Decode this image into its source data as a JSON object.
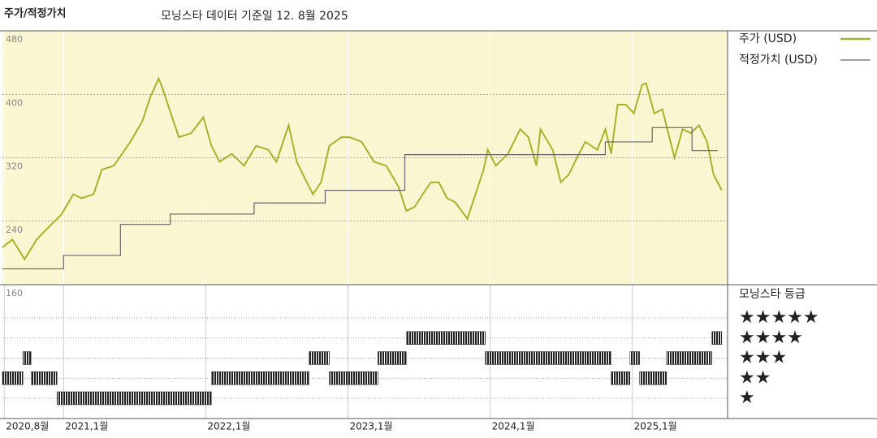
{
  "chart_data": {
    "type": "line",
    "title": "주가/적정가치",
    "subtitle": "모닝스타 데이터 기준일 12. 8월 2025",
    "xlim": [
      2020.57,
      2025.67
    ],
    "xticks": [
      {
        "value": 2020.583,
        "label": "2020,8월"
      },
      {
        "value": 2021.0,
        "label": "2021,1월"
      },
      {
        "value": 2022.0,
        "label": "2022,1월"
      },
      {
        "value": 2023.0,
        "label": "2023,1월"
      },
      {
        "value": 2024.0,
        "label": "2024,1월"
      },
      {
        "value": 2025.0,
        "label": "2025,1월"
      }
    ],
    "ylim": [
      160,
      480
    ],
    "yticks": [
      160,
      240,
      320,
      400,
      480
    ],
    "grid": true,
    "legend": "right",
    "series": [
      {
        "name": "주가 (USD)",
        "color": "#a9b12a",
        "x": [
          2020.571,
          2020.64,
          2020.726,
          2020.811,
          2020.897,
          2020.983,
          2021.069,
          2021.126,
          2021.211,
          2021.269,
          2021.354,
          2021.469,
          2021.554,
          2021.611,
          2021.669,
          2021.697,
          2021.754,
          2021.811,
          2021.897,
          2021.983,
          2022.04,
          2022.097,
          2022.183,
          2022.269,
          2022.354,
          2022.44,
          2022.497,
          2022.583,
          2022.64,
          2022.697,
          2022.754,
          2022.811,
          2022.869,
          2022.954,
          2023.011,
          2023.097,
          2023.183,
          2023.269,
          2023.354,
          2023.411,
          2023.469,
          2023.526,
          2023.583,
          2023.64,
          2023.697,
          2023.754,
          2023.84,
          2023.897,
          2023.954,
          2023.983,
          2024.04,
          2024.126,
          2024.211,
          2024.269,
          2024.326,
          2024.354,
          2024.44,
          2024.497,
          2024.554,
          2024.611,
          2024.669,
          2024.754,
          2024.811,
          2024.851,
          2024.897,
          2024.954,
          2025.011,
          2025.069,
          2025.097,
          2025.154,
          2025.211,
          2025.297,
          2025.354,
          2025.411,
          2025.469,
          2025.526,
          2025.571,
          2025.629
        ],
        "values": [
          207,
          217,
          192,
          217,
          233,
          248,
          274,
          269,
          274,
          305,
          310,
          340,
          366,
          397,
          420,
          407,
          376,
          346,
          351,
          371,
          335,
          315,
          325,
          310,
          335,
          330,
          315,
          361,
          315,
          294,
          274,
          289,
          335,
          346,
          346,
          340,
          315,
          310,
          284,
          253,
          258,
          274,
          289,
          289,
          269,
          264,
          243,
          274,
          305,
          330,
          310,
          325,
          356,
          346,
          310,
          356,
          330,
          289,
          299,
          320,
          340,
          330,
          356,
          325,
          387,
          387,
          376,
          412,
          414,
          376,
          381,
          320,
          356,
          351,
          361,
          340,
          299,
          279
        ]
      },
      {
        "name": "적정가치 (USD)",
        "color": "#666666",
        "step": true,
        "x": [
          2020.57,
          2021.0,
          2021.4,
          2021.75,
          2022.34,
          2022.84,
          2023.4,
          2024.81,
          2025.14,
          2025.42,
          2025.6
        ],
        "values": [
          180,
          197,
          236,
          249,
          263,
          279,
          324,
          340,
          358,
          329,
          329
        ]
      }
    ],
    "ratings": {
      "title": "모닝스타 등급",
      "color": "#222222",
      "levels": [
        "★★★★★",
        "★★★★",
        "★★★",
        "★★",
        "★"
      ],
      "stars": [
        5,
        4,
        3,
        2,
        1
      ],
      "periods": [
        {
          "start": 2020.57,
          "end": 2020.714,
          "stars": 2
        },
        {
          "start": 2020.714,
          "end": 2020.771,
          "stars": 3
        },
        {
          "start": 2020.771,
          "end": 2020.954,
          "stars": 2
        },
        {
          "start": 2020.954,
          "end": 2022.04,
          "stars": 1
        },
        {
          "start": 2022.04,
          "end": 2022.726,
          "stars": 2
        },
        {
          "start": 2022.726,
          "end": 2022.869,
          "stars": 3
        },
        {
          "start": 2022.869,
          "end": 2023.211,
          "stars": 2
        },
        {
          "start": 2023.211,
          "end": 2023.411,
          "stars": 3
        },
        {
          "start": 2023.411,
          "end": 2023.966,
          "stars": 4
        },
        {
          "start": 2023.966,
          "end": 2024.851,
          "stars": 3
        },
        {
          "start": 2024.851,
          "end": 2024.983,
          "stars": 2
        },
        {
          "start": 2024.983,
          "end": 2025.051,
          "stars": 3
        },
        {
          "start": 2025.051,
          "end": 2025.24,
          "stars": 2
        },
        {
          "start": 2025.24,
          "end": 2025.56,
          "stars": 3
        },
        {
          "start": 2025.56,
          "end": 2025.629,
          "stars": 4
        }
      ]
    }
  }
}
